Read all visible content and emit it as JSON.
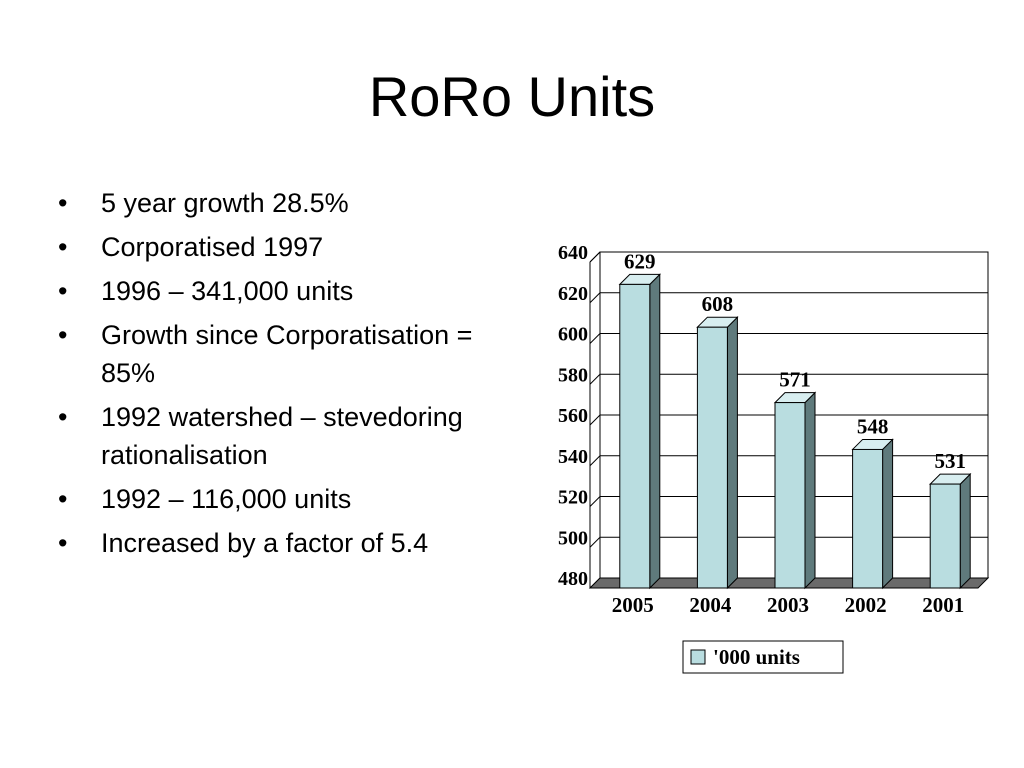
{
  "slide": {
    "title": "RoRo Units",
    "bullets": [
      "5 year growth 28.5%",
      "Corporatised 1997",
      "1996 – 341,000 units",
      "Growth since Corporatisation = 85%",
      "1992 watershed – stevedoring rationalisation",
      "1992 – 116,000 units",
      "Increased by a factor of 5.4"
    ]
  },
  "chart_data": {
    "type": "bar",
    "categories": [
      "2005",
      "2004",
      "2003",
      "2002",
      "2001"
    ],
    "series": [
      {
        "name": "'000 units",
        "values": [
          629,
          608,
          571,
          548,
          531
        ]
      }
    ],
    "data_labels": [
      "629",
      "608",
      "571",
      "548",
      "531"
    ],
    "ylim": [
      480,
      640
    ],
    "yticks": [
      480,
      500,
      520,
      540,
      560,
      580,
      600,
      620,
      640
    ],
    "grid": true,
    "legend_position": "bottom",
    "colors": {
      "bar_front": "#b9dde0",
      "bar_side": "#5f7a7c",
      "bar_top": "#d8eef0",
      "floor": "#6a6a6a",
      "grid": "#000000"
    }
  }
}
